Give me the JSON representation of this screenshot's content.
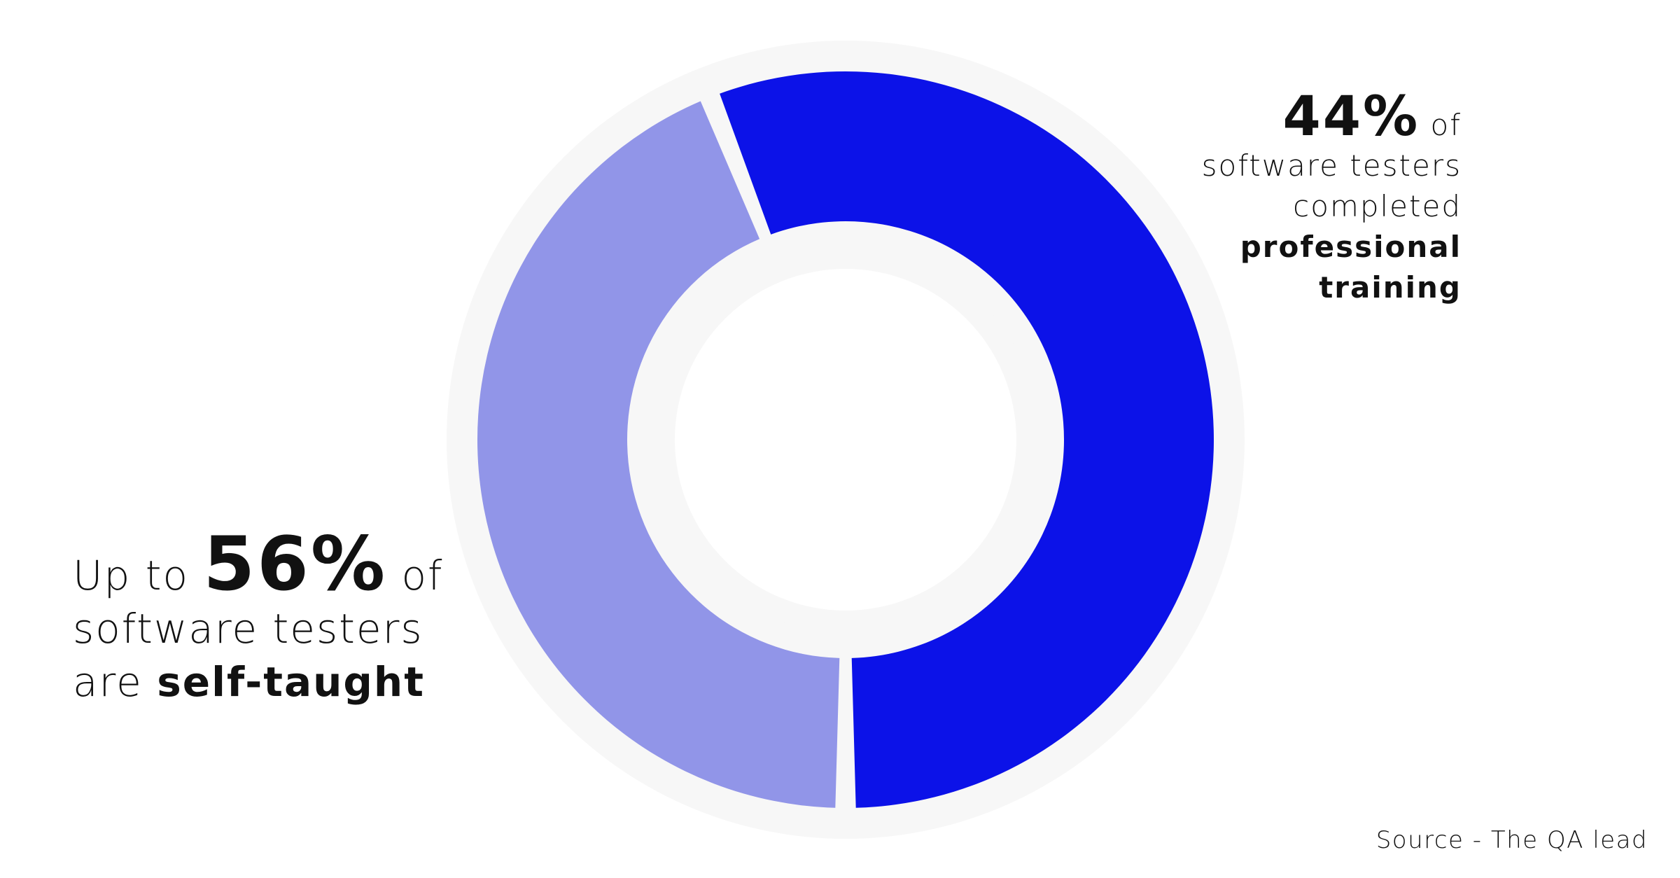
{
  "chart_data": {
    "type": "pie",
    "variant": "donut",
    "slices": [
      {
        "label": "self-taught",
        "value": 56,
        "color": "#0C12E8"
      },
      {
        "label": "professional training",
        "value": 44,
        "color": "#9195E8"
      }
    ],
    "background_ring_color": "#F7F7F7"
  },
  "annotations": {
    "professional": {
      "percent": "44%",
      "after_percent": "of",
      "line2": "software testers",
      "line3": "completed",
      "line4": "professional",
      "line5": "training"
    },
    "self_taught": {
      "prefix": "Up to",
      "percent": "56%",
      "after_percent": "of",
      "line2": "software testers",
      "line3_prefix": "are",
      "line3_strong": "self-taught"
    }
  },
  "source": "Source - The QA lead"
}
